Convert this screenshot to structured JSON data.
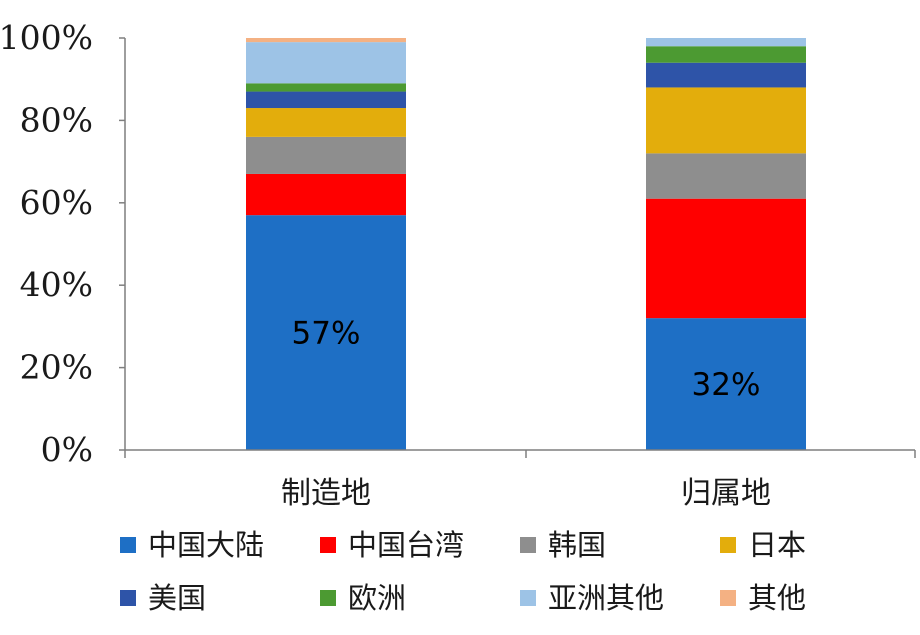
{
  "chart_data": {
    "type": "bar",
    "stacked": true,
    "percent_stacked": true,
    "categories": [
      "制造地",
      "归属地"
    ],
    "ylim": [
      0,
      100
    ],
    "yticks": [
      "0%",
      "20%",
      "40%",
      "60%",
      "80%",
      "100%"
    ],
    "grid": false,
    "legend_position": "bottom",
    "series": [
      {
        "name": "中国大陆",
        "color": "#1E6FC5",
        "values": [
          57,
          32
        ]
      },
      {
        "name": "中国台湾",
        "color": "#FF0000",
        "values": [
          10,
          29
        ]
      },
      {
        "name": "韩国",
        "color": "#8E8E8E",
        "values": [
          9,
          11
        ]
      },
      {
        "name": "日本",
        "color": "#E3AD0C",
        "values": [
          7,
          16
        ]
      },
      {
        "name": "美国",
        "color": "#2E54A8",
        "values": [
          4,
          6
        ]
      },
      {
        "name": "欧洲",
        "color": "#4C9A32",
        "values": [
          2,
          4
        ]
      },
      {
        "name": "亚洲其他",
        "color": "#9DC3E6",
        "values": [
          10,
          2
        ]
      },
      {
        "name": "其他",
        "color": "#F4B183",
        "values": [
          1,
          0
        ]
      }
    ],
    "data_labels": [
      {
        "category": "制造地",
        "series": "中国大陆",
        "text": "57%"
      },
      {
        "category": "归属地",
        "series": "中国大陆",
        "text": "32%"
      }
    ]
  }
}
